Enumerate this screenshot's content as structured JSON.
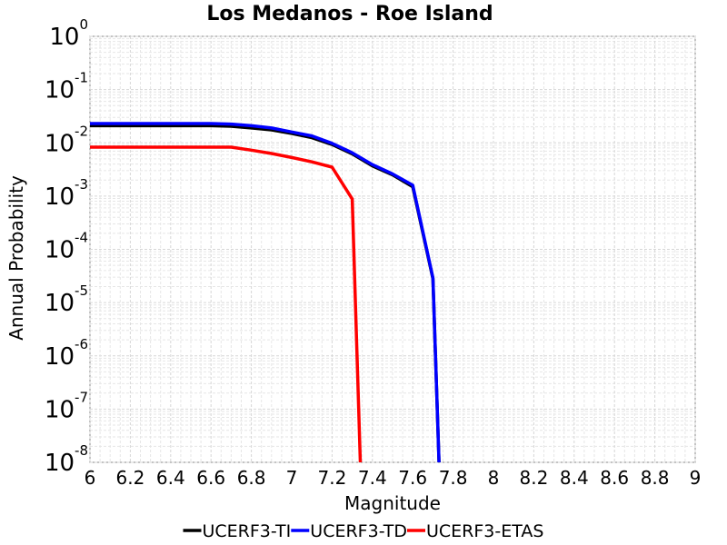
{
  "chart_data": {
    "type": "line",
    "title": "Los Medanos - Roe Island",
    "xlabel": "Magnitude",
    "ylabel": "Annual Probability",
    "xlim": [
      6,
      9
    ],
    "ylim": [
      1e-08,
      1
    ],
    "yscale": "log",
    "grid": true,
    "legend_position": "bottom",
    "x_ticks": [
      "6",
      "6.2",
      "6.4",
      "6.6",
      "6.8",
      "7",
      "7.2",
      "7.4",
      "7.6",
      "7.8",
      "8",
      "8.2",
      "8.4",
      "8.6",
      "8.8",
      "9"
    ],
    "y_ticks": [
      {
        "base": "10",
        "exp": "0"
      },
      {
        "base": "10",
        "exp": "-1"
      },
      {
        "base": "10",
        "exp": "-2"
      },
      {
        "base": "10",
        "exp": "-3"
      },
      {
        "base": "10",
        "exp": "-4"
      },
      {
        "base": "10",
        "exp": "-5"
      },
      {
        "base": "10",
        "exp": "-6"
      },
      {
        "base": "10",
        "exp": "-7"
      },
      {
        "base": "10",
        "exp": "-8"
      }
    ],
    "series": [
      {
        "name": "UCERF3-TI",
        "color": "#000000",
        "x": [
          6.0,
          6.1,
          6.2,
          6.3,
          6.4,
          6.5,
          6.6,
          6.7,
          6.8,
          6.9,
          7.0,
          7.1,
          7.2,
          7.3,
          7.4,
          7.5,
          7.6,
          7.7,
          7.73
        ],
        "y": [
          0.021,
          0.021,
          0.021,
          0.021,
          0.021,
          0.021,
          0.021,
          0.0205,
          0.019,
          0.0175,
          0.015,
          0.0125,
          0.0093,
          0.0062,
          0.0037,
          0.0025,
          0.0015,
          2.8e-05,
          1e-08
        ]
      },
      {
        "name": "UCERF3-TD",
        "color": "#0000ff",
        "x": [
          6.0,
          6.1,
          6.2,
          6.3,
          6.4,
          6.5,
          6.6,
          6.7,
          6.8,
          6.9,
          7.0,
          7.1,
          7.2,
          7.3,
          7.4,
          7.5,
          7.6,
          7.7,
          7.73
        ],
        "y": [
          0.023,
          0.023,
          0.023,
          0.023,
          0.023,
          0.023,
          0.023,
          0.0225,
          0.021,
          0.019,
          0.016,
          0.0135,
          0.0098,
          0.0065,
          0.0039,
          0.0026,
          0.0016,
          2.9e-05,
          1e-08
        ]
      },
      {
        "name": "UCERF3-ETAS",
        "color": "#ff0000",
        "x": [
          6.0,
          6.1,
          6.2,
          6.3,
          6.4,
          6.5,
          6.6,
          6.7,
          6.8,
          6.9,
          7.0,
          7.1,
          7.2,
          7.3,
          7.34
        ],
        "y": [
          0.0083,
          0.0083,
          0.0083,
          0.0083,
          0.0083,
          0.0083,
          0.0083,
          0.0083,
          0.0073,
          0.0063,
          0.0053,
          0.0044,
          0.0035,
          0.00088,
          1e-08
        ]
      }
    ]
  }
}
